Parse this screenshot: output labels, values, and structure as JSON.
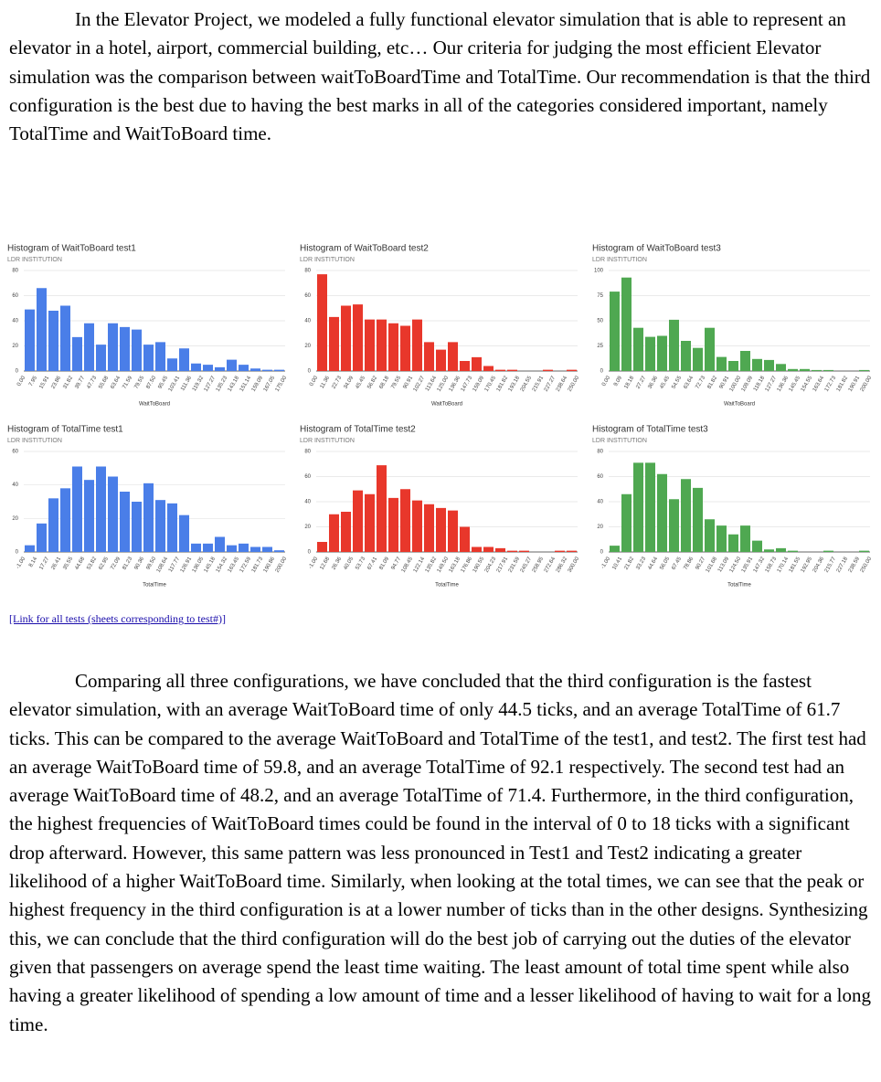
{
  "paragraphs": [
    "In the Elevator Project, we modeled a fully functional elevator simulation that is able to represent an elevator in a hotel, airport, commercial building, etc… Our criteria for judging the most efficient Elevator simulation was the comparison between waitToBoardTime and TotalTime. Our recommendation is that the third configuration is the best due to having the best marks in all of the categories considered important, namely TotalTime and WaitToBoard time.",
    "Comparing all three configurations, we have concluded that the third configuration is the fastest elevator simulation, with an average WaitToBoard time of only 44.5 ticks, and an average TotalTime of 61.7 ticks. This can be compared to the average WaitToBoard and TotalTime of the test1, and test2. The first test had an average WaitToBoard time of 59.8, and an average TotalTime of 92.1 respectively. The second test had an average WaitToBoard time of 48.2, and an average TotalTime of 71.4. Furthermore, in the third configuration, the highest frequencies of WaitToBoard times could be found in the interval of 0 to 18 ticks with a significant drop afterward. However, this same pattern was less pronounced in Test1 and Test2 indicating a greater likelihood of a higher WaitToBoard time. Similarly, when looking at the total times, we can see that the peak or highest frequency in the third configuration is at a lower number of ticks than in the other designs. Synthesizing this, we can conclude that the third configuration will do the best job of carrying out the duties of the elevator given that passengers on average spend the least time waiting. The least amount of total time spent while also having a greater likelihood of spending a low amount of time and a lesser likelihood of having to wait for a long time."
  ],
  "link": "[Link for all tests (sheets corresponding to test#)]",
  "chart_data": [
    {
      "type": "histogram",
      "title": "Histogram of WaitToBoard test1",
      "subtitle": "LDR INSTITUTION",
      "xlabel": "WaitToBoard",
      "color": "#4a7ee8",
      "bins": [
        0,
        7.95,
        15.91,
        23.86,
        31.82,
        39.77,
        47.73,
        55.68,
        63.64,
        71.59,
        79.55,
        87.5,
        95.45,
        103.41,
        111.36,
        119.32,
        127.27,
        135.23,
        143.18,
        151.14,
        159.09,
        167.05,
        175
      ],
      "values": [
        49,
        66,
        48,
        52,
        27,
        38,
        21,
        38,
        35,
        33,
        21,
        23,
        10,
        18,
        6,
        5,
        3,
        9,
        5,
        2,
        1,
        1
      ],
      "xlim": [
        0,
        175
      ],
      "xticks": [
        {
          "value": 0,
          "label": "0.00"
        },
        7.95,
        15.91,
        23.86,
        31.82,
        39.77,
        47.73,
        55.68,
        63.64,
        71.59,
        79.55,
        {
          "value": 87.5,
          "label": "87.50"
        },
        95.45,
        103.41,
        111.36,
        119.32,
        127.27,
        135.23,
        143.18,
        151.14,
        159.09,
        167.05,
        {
          "value": 175,
          "label": "175.00"
        }
      ],
      "ylim": [
        0,
        80
      ],
      "yticks": [
        0,
        20,
        40,
        60,
        80
      ],
      "grid": true
    },
    {
      "type": "histogram",
      "title": "Histogram of WaitToBoard test2",
      "subtitle": "LDR INSTITUTION",
      "xlabel": "WaitToBoard",
      "color": "#e8372b",
      "bins": [
        0,
        11.36,
        22.73,
        34.09,
        45.45,
        56.82,
        68.18,
        79.55,
        90.91,
        102.27,
        113.64,
        125,
        136.36,
        147.73,
        159.09,
        170.45,
        181.82,
        193.18,
        204.55,
        215.91,
        227.27,
        238.64,
        250
      ],
      "values": [
        77,
        43,
        52,
        53,
        41,
        41,
        38,
        36,
        41,
        23,
        17,
        23,
        8,
        11,
        4,
        1,
        1,
        0,
        0,
        1,
        0,
        1
      ],
      "xlim": [
        0,
        250
      ],
      "xticks": [
        {
          "value": 0,
          "label": "0.00"
        },
        11.36,
        22.73,
        34.09,
        45.45,
        56.82,
        68.18,
        79.55,
        90.91,
        102.27,
        113.64,
        {
          "value": 125,
          "label": "125.00"
        },
        136.36,
        147.73,
        159.09,
        170.45,
        181.82,
        193.18,
        204.55,
        215.91,
        227.27,
        238.64,
        {
          "value": 250,
          "label": "250.00"
        }
      ],
      "ylim": [
        0,
        80
      ],
      "yticks": [
        0,
        20,
        40,
        60,
        80
      ],
      "grid": true
    },
    {
      "type": "histogram",
      "title": "Histogram of WaitToBoard test3",
      "subtitle": "LDR INSTITUTION",
      "xlabel": "WaitToBoard",
      "color": "#4fa851",
      "bins": [
        0,
        9.09,
        18.18,
        27.27,
        36.36,
        45.45,
        54.55,
        63.64,
        72.73,
        81.82,
        90.91,
        100,
        109.09,
        118.18,
        127.27,
        136.36,
        145.45,
        154.55,
        163.64,
        172.73,
        181.82,
        190.91,
        200
      ],
      "values": [
        79,
        93,
        43,
        34,
        35,
        51,
        30,
        23,
        43,
        14,
        10,
        20,
        12,
        11,
        7,
        2,
        2,
        1,
        1,
        0,
        0,
        1
      ],
      "xlim": [
        0,
        200
      ],
      "xticks": [
        {
          "value": 0,
          "label": "0.00"
        },
        9.09,
        18.18,
        27.27,
        36.36,
        45.45,
        54.55,
        63.64,
        72.73,
        81.82,
        90.91,
        {
          "value": 100,
          "label": "100.00"
        },
        109.09,
        118.18,
        127.27,
        136.36,
        145.45,
        154.55,
        163.64,
        172.73,
        181.82,
        190.91,
        {
          "value": 200,
          "label": "200.00"
        }
      ],
      "ylim": [
        0,
        100
      ],
      "yticks": [
        0,
        25,
        50,
        75,
        100
      ],
      "grid": true
    },
    {
      "type": "histogram",
      "title": "Histogram of TotalTime test1",
      "subtitle": "LDR INSTITUTION",
      "xlabel": "TotalTime",
      "color": "#4a7ee8",
      "bins": [
        -1,
        8.14,
        17.27,
        26.41,
        35.55,
        44.68,
        53.82,
        62.95,
        72.09,
        81.23,
        90.36,
        99.5,
        108.64,
        117.77,
        126.91,
        136.05,
        145.18,
        154.32,
        163.45,
        172.59,
        181.73,
        190.86,
        200
      ],
      "values": [
        4,
        17,
        32,
        38,
        51,
        43,
        51,
        45,
        36,
        30,
        41,
        31,
        29,
        22,
        5,
        5,
        9,
        4,
        5,
        3,
        3,
        1
      ],
      "xlim": [
        -1,
        200
      ],
      "xticks": [
        {
          "value": -1,
          "label": "-1.00"
        },
        8.14,
        17.27,
        26.41,
        35.55,
        44.68,
        53.82,
        62.95,
        72.09,
        81.23,
        90.36,
        {
          "value": 99.5,
          "label": "99.50"
        },
        108.64,
        117.77,
        126.91,
        136.05,
        145.18,
        154.32,
        163.45,
        172.59,
        181.73,
        190.86,
        {
          "value": 200,
          "label": "200.00"
        }
      ],
      "ylim": [
        0,
        60
      ],
      "yticks": [
        0,
        20,
        40,
        60
      ],
      "grid": true
    },
    {
      "type": "histogram",
      "title": "Histogram of TotalTime test2",
      "subtitle": "LDR INSTITUTION",
      "xlabel": "TotalTime",
      "color": "#e8372b",
      "bins": [
        -1,
        12.68,
        26.36,
        40.05,
        53.73,
        67.41,
        81.09,
        94.77,
        108.45,
        122.14,
        135.82,
        149.5,
        163.18,
        176.86,
        190.55,
        204.23,
        217.91,
        231.59,
        245.27,
        258.95,
        272.64,
        286.32,
        300
      ],
      "values": [
        8,
        30,
        32,
        49,
        46,
        69,
        43,
        50,
        41,
        38,
        35,
        33,
        20,
        4,
        4,
        3,
        1,
        1,
        0,
        0,
        1,
        1
      ],
      "xlim": [
        -1,
        300
      ],
      "xticks": [
        {
          "value": -1,
          "label": "-1.00"
        },
        12.68,
        26.36,
        40.05,
        53.73,
        67.41,
        81.09,
        94.77,
        108.45,
        122.14,
        135.82,
        {
          "value": 149.5,
          "label": "149.50"
        },
        163.18,
        176.86,
        190.55,
        204.23,
        217.91,
        231.59,
        245.27,
        258.95,
        272.64,
        286.32,
        {
          "value": 300,
          "label": "300.00"
        }
      ],
      "ylim": [
        0,
        80
      ],
      "yticks": [
        0,
        20,
        40,
        60,
        80
      ],
      "grid": true
    },
    {
      "type": "histogram",
      "title": "Histogram of TotalTime test3",
      "subtitle": "LDR INSTITUTION",
      "xlabel": "TotalTime",
      "color": "#4fa851",
      "bins": [
        -1,
        10.41,
        21.82,
        33.23,
        44.64,
        56.05,
        67.45,
        78.86,
        90.27,
        101.68,
        113.09,
        124.5,
        135.91,
        147.32,
        158.73,
        170.14,
        181.55,
        192.95,
        204.36,
        215.77,
        227.18,
        238.59,
        250
      ],
      "values": [
        5,
        46,
        71,
        71,
        62,
        42,
        58,
        51,
        26,
        21,
        14,
        21,
        9,
        2,
        3,
        1,
        0,
        0,
        1,
        0,
        0,
        1
      ],
      "xlim": [
        -1,
        250
      ],
      "xticks": [
        {
          "value": -1,
          "label": "-1.00"
        },
        10.41,
        21.82,
        33.23,
        44.64,
        56.05,
        67.45,
        78.86,
        90.27,
        101.68,
        113.09,
        {
          "value": 124.5,
          "label": "124.50"
        },
        135.91,
        147.32,
        158.73,
        170.14,
        181.55,
        192.95,
        204.36,
        215.77,
        227.18,
        238.59,
        {
          "value": 250,
          "label": "250.00"
        }
      ],
      "ylim": [
        0,
        80
      ],
      "yticks": [
        0,
        20,
        40,
        60,
        80
      ],
      "grid": true
    }
  ]
}
